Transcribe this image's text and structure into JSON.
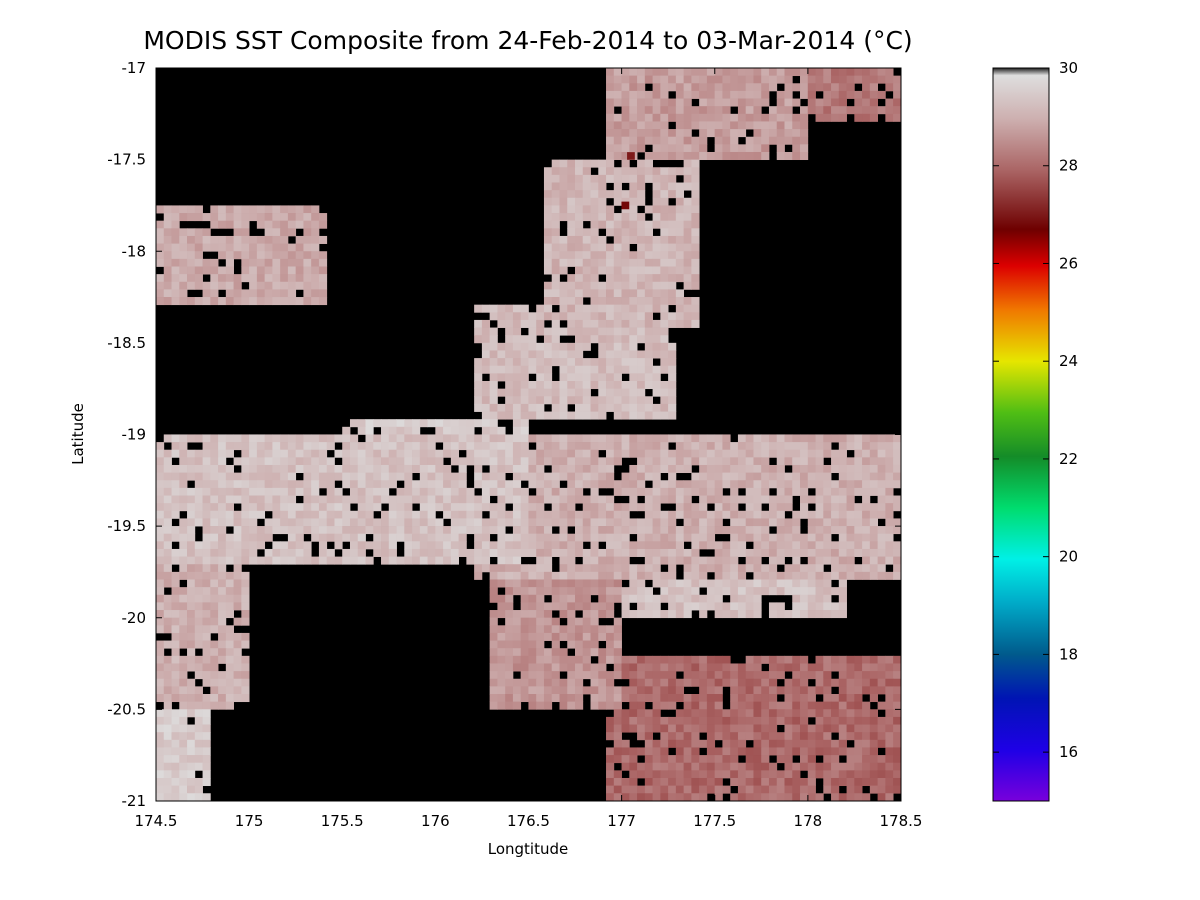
{
  "chart_data": {
    "type": "heatmap",
    "title": "MODIS SST Composite from 24-Feb-2014 to 03-Mar-2014 (°C)",
    "xlabel": "Longtitude",
    "ylabel": "Latitude",
    "xlim": [
      174.5,
      178.5
    ],
    "ylim": [
      -21,
      -17
    ],
    "x_ticks": [
      "174.5",
      "175",
      "175.5",
      "176",
      "176.5",
      "177",
      "177.5",
      "178",
      "178.5"
    ],
    "y_ticks": [
      "-17",
      "-17.5",
      "-18",
      "-18.5",
      "-19",
      "-19.5",
      "-20",
      "-20.5",
      "-21"
    ],
    "colorbar": {
      "range": [
        15,
        30
      ],
      "ticks": [
        "16",
        "18",
        "20",
        "22",
        "24",
        "26",
        "28",
        "30"
      ]
    },
    "no_data_color": "#000000",
    "grid_resolution_deg": 0.04166,
    "regions_sst_c": [
      {
        "lon": [
          174.5,
          175.4
        ],
        "lat": [
          -18.3,
          -17.75
        ],
        "sst": 28.9
      },
      {
        "lon": [
          176.6,
          177.4
        ],
        "lat": [
          -18.4,
          -17.5
        ],
        "sst": 29.1
      },
      {
        "lon": [
          176.9,
          178.0
        ],
        "lat": [
          -17.5,
          -17.0
        ],
        "sst": 28.7
      },
      {
        "lon": [
          178.0,
          178.5
        ],
        "lat": [
          -17.3,
          -17.0
        ],
        "sst": 28.2
      },
      {
        "lon": [
          176.2,
          177.3
        ],
        "lat": [
          -18.9,
          -18.3
        ],
        "sst": 29.2
      },
      {
        "lon": [
          174.5,
          176.5
        ],
        "lat": [
          -19.7,
          -19.0
        ],
        "sst": 29.3
      },
      {
        "lon": [
          175.5,
          176.5
        ],
        "lat": [
          -19.3,
          -18.9
        ],
        "sst": 29.5
      },
      {
        "lon": [
          176.2,
          178.5
        ],
        "lat": [
          -19.8,
          -19.0
        ],
        "sst": 29.0
      },
      {
        "lon": [
          177.0,
          178.2
        ],
        "lat": [
          -20.0,
          -19.4
        ],
        "sst": 29.3
      },
      {
        "lon": [
          174.5,
          175.0
        ],
        "lat": [
          -20.5,
          -19.7
        ],
        "sst": 29.0
      },
      {
        "lon": [
          174.5,
          174.8
        ],
        "lat": [
          -21.0,
          -20.5
        ],
        "sst": 29.5
      },
      {
        "lon": [
          176.3,
          177.0
        ],
        "lat": [
          -20.5,
          -19.8
        ],
        "sst": 28.6
      },
      {
        "lon": [
          176.9,
          178.5
        ],
        "lat": [
          -21.0,
          -20.2
        ],
        "sst": 28.0
      }
    ],
    "hotspots_sst_c": [
      {
        "lon": 177.02,
        "lat": -17.75,
        "sst": 26.8
      },
      {
        "lon": 177.05,
        "lat": -17.48,
        "sst": 27.0
      }
    ]
  }
}
